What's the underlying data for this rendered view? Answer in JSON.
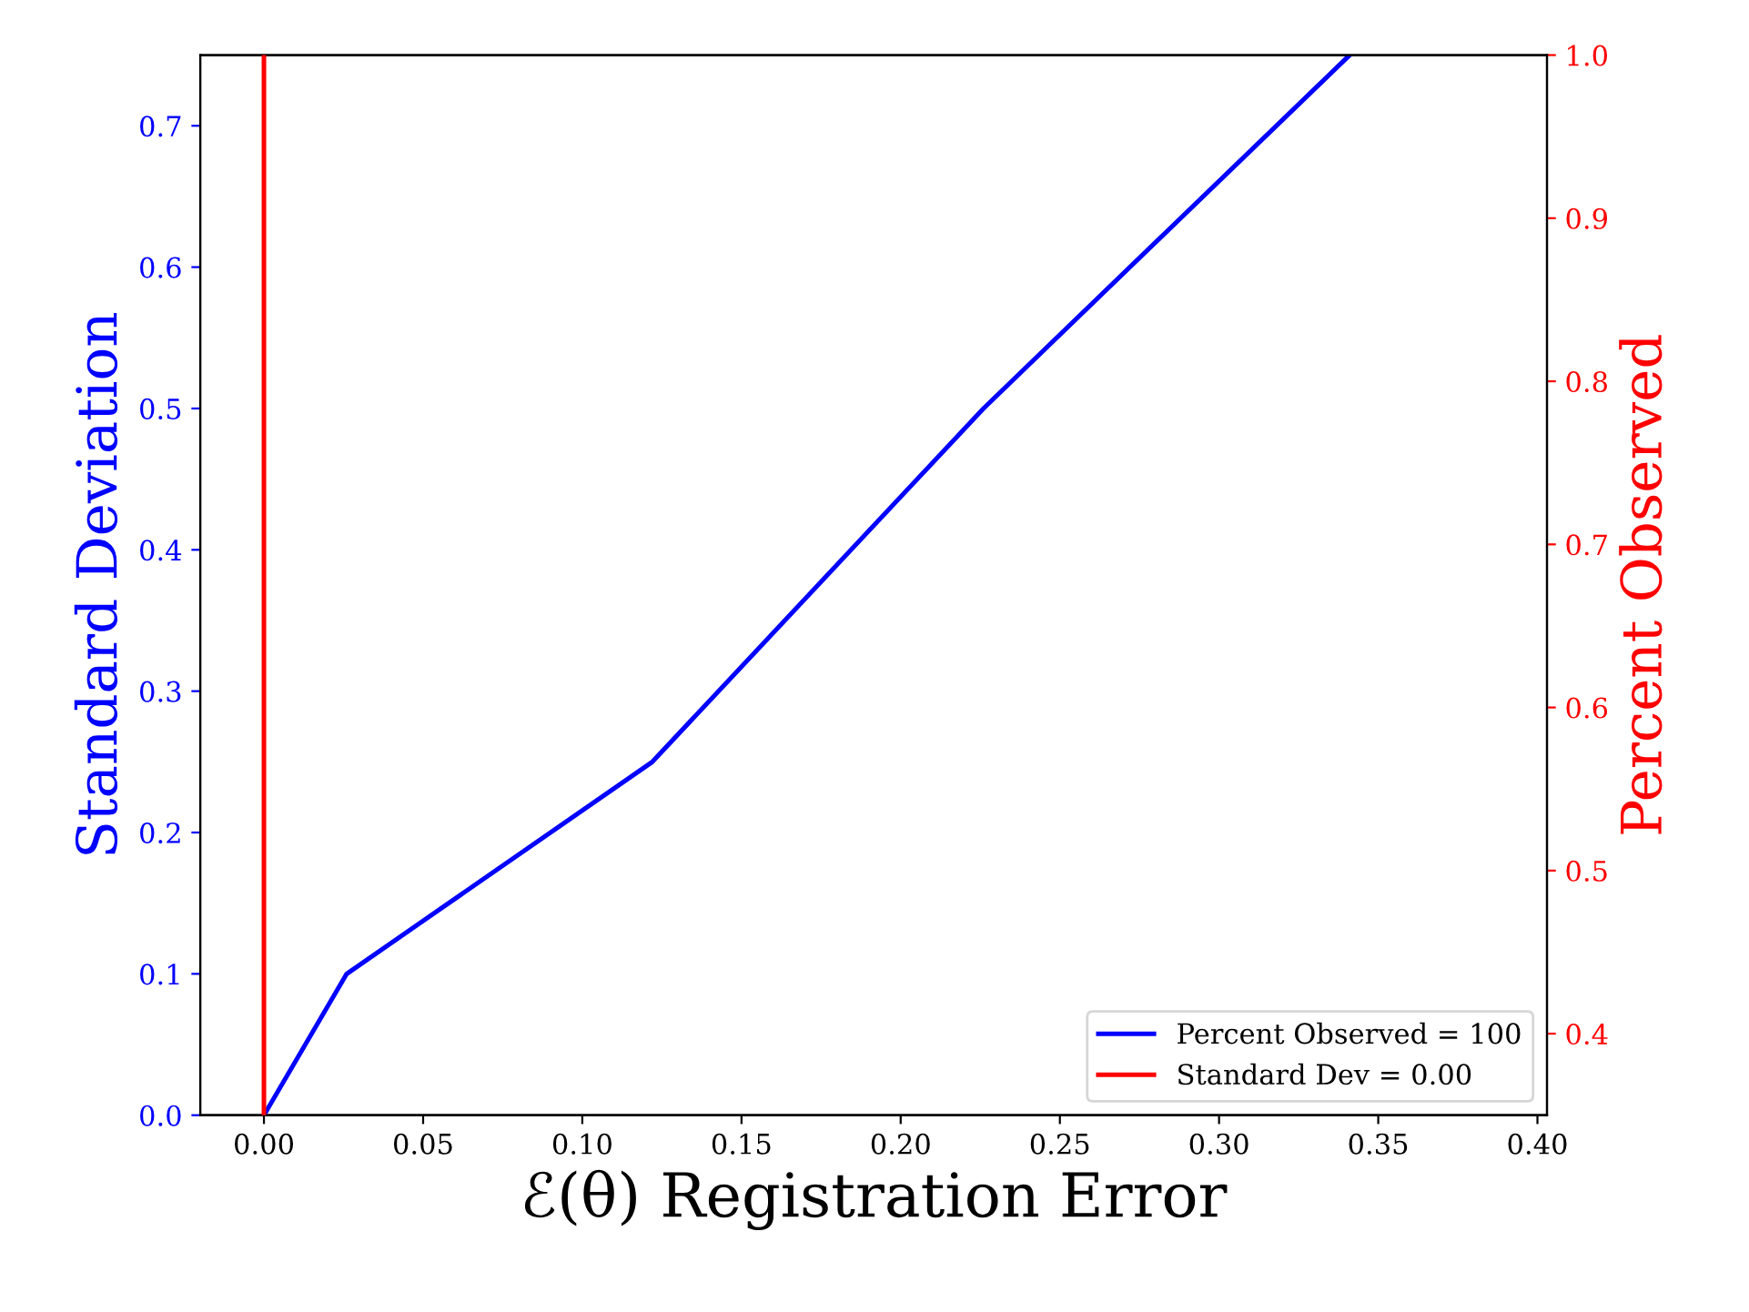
{
  "chart_data": {
    "type": "line",
    "xlabel": "ℰ(θ) Registration Error",
    "ylabel": "Standard Deviation",
    "y2label": "Percent Observed",
    "series": [
      {
        "name": "Percent Observed = 100",
        "color": "#0000ff",
        "x": [
          0,
          0.026,
          0.122,
          0.226,
          0.341
        ],
        "values": [
          0,
          0.1,
          0.25,
          0.5,
          0.75
        ]
      },
      {
        "name": "Standard Dev = 0.00",
        "color": "#ff0000",
        "axis": "y2",
        "x": [
          0,
          0
        ],
        "values": [
          0.35,
          1.0
        ]
      }
    ],
    "xlim": [
      -0.02,
      0.403
    ],
    "xticks": [
      {
        "value": 0,
        "label": "0.00"
      },
      0.05,
      {
        "value": 0.1,
        "label": "0.10"
      },
      0.15,
      {
        "value": 0.2,
        "label": "0.20"
      },
      0.25,
      {
        "value": 0.3,
        "label": "0.30"
      },
      0.35,
      {
        "value": 0.4,
        "label": "0.40"
      }
    ],
    "ylim": [
      0,
      0.75
    ],
    "yticks": [
      {
        "value": 0,
        "label": "0.0"
      },
      0.1,
      0.2,
      0.3,
      0.4,
      0.5,
      0.6,
      0.7
    ],
    "y2lim": [
      0.35,
      1.0
    ],
    "y2ticks": [
      0.4,
      0.5,
      0.6,
      0.7,
      0.8,
      0.9,
      {
        "value": 1.0,
        "label": "1.0"
      }
    ],
    "legend": "lower right",
    "grid": false
  }
}
